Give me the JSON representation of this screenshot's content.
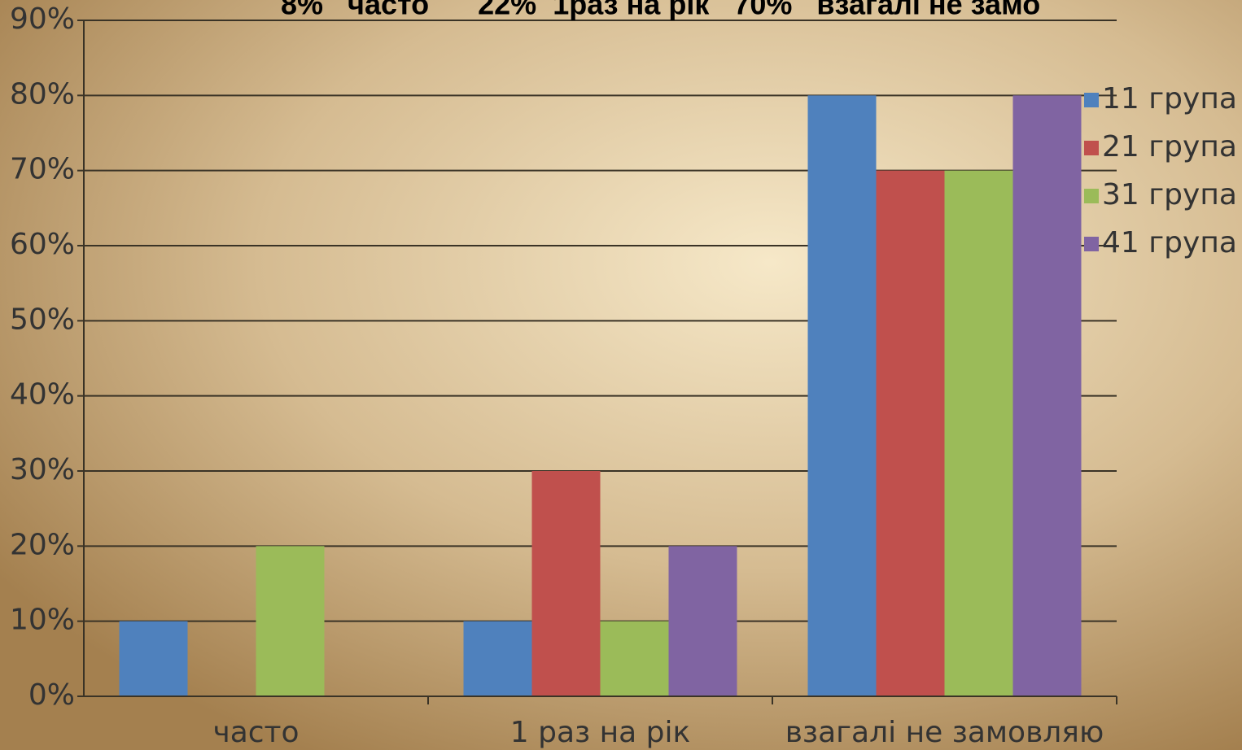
{
  "chart_data": {
    "type": "bar",
    "title": "8%   часто      22%  1раз на рік   70%   взагалі не замо",
    "categories": [
      "часто",
      "1 раз на рік",
      "взагалі не замовляю"
    ],
    "series": [
      {
        "name": "11 група",
        "color": "#4f81bd",
        "values": [
          10,
          10,
          80
        ]
      },
      {
        "name": "21 група",
        "color": "#c0504d",
        "values": [
          null,
          30,
          70
        ]
      },
      {
        "name": "31 група",
        "color": "#9bbb59",
        "values": [
          20,
          10,
          70
        ]
      },
      {
        "name": "41 група",
        "color": "#8064a2",
        "values": [
          null,
          20,
          80
        ]
      }
    ],
    "ylim": [
      0,
      90
    ],
    "yticks": [
      {
        "value": 0,
        "label": "0%"
      },
      {
        "value": 10,
        "label": "10%"
      },
      {
        "value": 20,
        "label": "20%"
      },
      {
        "value": 30,
        "label": "30%"
      },
      {
        "value": 40,
        "label": "40%"
      },
      {
        "value": 50,
        "label": "50%"
      },
      {
        "value": 60,
        "label": "60%"
      },
      {
        "value": 70,
        "label": "70%"
      },
      {
        "value": 80,
        "label": "80%"
      },
      {
        "value": 90,
        "label": "90%"
      }
    ],
    "grid": true,
    "legend": "right"
  }
}
